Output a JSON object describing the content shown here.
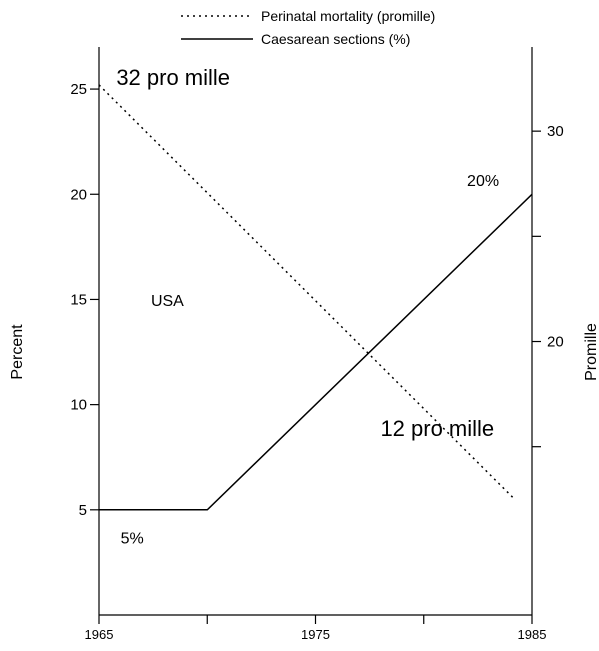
{
  "chart_data": {
    "type": "line",
    "xlabel": "",
    "ylabel": "Percent",
    "y2label": "Promille",
    "xlim": [
      1965,
      1985
    ],
    "ylim": [
      0,
      27
    ],
    "y2lim": [
      7,
      34
    ],
    "x_ticks": [
      1965,
      1970,
      1975,
      1980,
      1985
    ],
    "x_tick_labels": [
      "1965",
      "",
      "1975",
      "",
      "1985"
    ],
    "y_ticks": [
      5,
      10,
      15,
      20,
      25
    ],
    "y_tick_labels": [
      "5",
      "10",
      "15",
      "20",
      "25"
    ],
    "y2_ticks": [
      15,
      20,
      25,
      30
    ],
    "y2_tick_labels": [
      "",
      "20",
      "",
      "30"
    ],
    "legend_position": "top-center",
    "grid": false,
    "series": [
      {
        "name": "Perinatal mortality (promille)",
        "axis": "right",
        "style": "dotted",
        "x": [
          1965,
          1984.2
        ],
        "y": [
          32.2,
          12.5
        ]
      },
      {
        "name": "Caesarean sections (%)",
        "axis": "left",
        "style": "solid",
        "x": [
          1965,
          1970,
          1985
        ],
        "y": [
          5,
          5,
          20
        ]
      }
    ],
    "annotations": [
      {
        "text": "32 pro mille",
        "x": 1965.8,
        "y": 25.2,
        "size": "large"
      },
      {
        "text": "USA",
        "x": 1967.4,
        "y": 14.7,
        "size": "small"
      },
      {
        "text": "20%",
        "x": 1982.0,
        "y": 20.4,
        "size": "small"
      },
      {
        "text": "12 pro mille",
        "x": 1978.0,
        "y": 8.5,
        "size": "large"
      },
      {
        "text": "5%",
        "x": 1966.0,
        "y": 3.4,
        "size": "small"
      }
    ]
  }
}
